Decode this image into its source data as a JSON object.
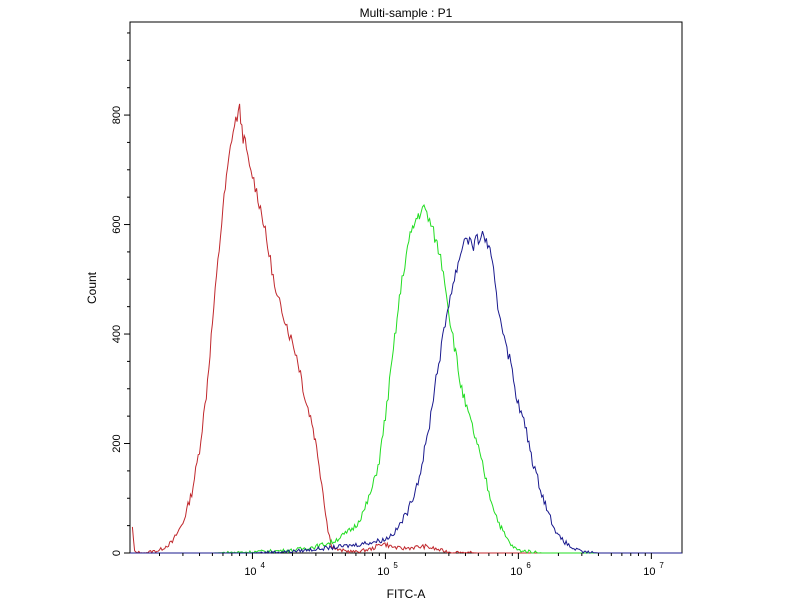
{
  "chart_data": {
    "type": "line",
    "title": "Multi-sample : P1",
    "xlabel": "FITC-A",
    "ylabel": "Count",
    "x_scale": "log",
    "xlim": [
      1200,
      17000000
    ],
    "ylim": [
      0,
      970
    ],
    "grid": false,
    "x_tick_labels": [
      {
        "base": "10",
        "exp": "4"
      },
      {
        "base": "10",
        "exp": "5"
      },
      {
        "base": "10",
        "exp": "6"
      },
      {
        "base": "10",
        "exp": "7"
      }
    ],
    "x_ticks": [
      10000,
      100000,
      1000000,
      10000000
    ],
    "y_ticks": [
      0,
      200,
      400,
      600,
      800
    ],
    "y_tick_labels": [
      "0",
      "200",
      "400",
      "600",
      "800"
    ],
    "series": [
      {
        "color": "#c0282d",
        "points": [
          [
            1250,
            45
          ],
          [
            1300,
            2
          ],
          [
            1500,
            0
          ],
          [
            2000,
            5
          ],
          [
            2500,
            20
          ],
          [
            3000,
            55
          ],
          [
            3500,
            110
          ],
          [
            4000,
            190
          ],
          [
            4500,
            290
          ],
          [
            5000,
            420
          ],
          [
            5500,
            530
          ],
          [
            6000,
            630
          ],
          [
            6500,
            700
          ],
          [
            7000,
            760
          ],
          [
            7500,
            790
          ],
          [
            8000,
            810
          ],
          [
            8500,
            760
          ],
          [
            9000,
            740
          ],
          [
            9500,
            700
          ],
          [
            10000,
            690
          ],
          [
            11000,
            650
          ],
          [
            12000,
            610
          ],
          [
            13000,
            560
          ],
          [
            14000,
            520
          ],
          [
            15000,
            470
          ],
          [
            17000,
            440
          ],
          [
            19000,
            400
          ],
          [
            21000,
            370
          ],
          [
            23000,
            330
          ],
          [
            25000,
            280
          ],
          [
            28000,
            240
          ],
          [
            31000,
            180
          ],
          [
            34000,
            110
          ],
          [
            37000,
            40
          ],
          [
            40000,
            10
          ],
          [
            45000,
            5
          ],
          [
            60000,
            2
          ],
          [
            80000,
            8
          ],
          [
            95000,
            18
          ],
          [
            110000,
            12
          ],
          [
            130000,
            8
          ],
          [
            160000,
            10
          ],
          [
            200000,
            12
          ],
          [
            250000,
            6
          ],
          [
            300000,
            2
          ],
          [
            500000,
            0
          ],
          [
            17000000,
            0
          ]
        ]
      },
      {
        "color": "#22dd22",
        "points": [
          [
            1200,
            0
          ],
          [
            5000,
            0
          ],
          [
            10000,
            2
          ],
          [
            20000,
            5
          ],
          [
            30000,
            12
          ],
          [
            40000,
            20
          ],
          [
            50000,
            35
          ],
          [
            60000,
            50
          ],
          [
            70000,
            80
          ],
          [
            80000,
            120
          ],
          [
            90000,
            170
          ],
          [
            100000,
            250
          ],
          [
            110000,
            330
          ],
          [
            120000,
            410
          ],
          [
            130000,
            480
          ],
          [
            140000,
            530
          ],
          [
            150000,
            570
          ],
          [
            160000,
            590
          ],
          [
            170000,
            610
          ],
          [
            180000,
            620
          ],
          [
            190000,
            630
          ],
          [
            200000,
            625
          ],
          [
            220000,
            600
          ],
          [
            240000,
            570
          ],
          [
            260000,
            540
          ],
          [
            280000,
            500
          ],
          [
            300000,
            440
          ],
          [
            330000,
            380
          ],
          [
            360000,
            320
          ],
          [
            400000,
            270
          ],
          [
            450000,
            230
          ],
          [
            500000,
            190
          ],
          [
            550000,
            150
          ],
          [
            600000,
            110
          ],
          [
            700000,
            60
          ],
          [
            800000,
            30
          ],
          [
            900000,
            12
          ],
          [
            1000000,
            5
          ],
          [
            1500000,
            0
          ],
          [
            17000000,
            0
          ]
        ]
      },
      {
        "color": "#1a1a8e",
        "points": [
          [
            1200,
            0
          ],
          [
            10000,
            0
          ],
          [
            20000,
            3
          ],
          [
            40000,
            10
          ],
          [
            60000,
            15
          ],
          [
            80000,
            20
          ],
          [
            100000,
            25
          ],
          [
            120000,
            40
          ],
          [
            150000,
            80
          ],
          [
            180000,
            140
          ],
          [
            210000,
            220
          ],
          [
            240000,
            320
          ],
          [
            270000,
            390
          ],
          [
            300000,
            460
          ],
          [
            330000,
            500
          ],
          [
            360000,
            540
          ],
          [
            400000,
            580
          ],
          [
            430000,
            570
          ],
          [
            460000,
            560
          ],
          [
            500000,
            575
          ],
          [
            550000,
            580
          ],
          [
            600000,
            560
          ],
          [
            650000,
            510
          ],
          [
            700000,
            450
          ],
          [
            800000,
            390
          ],
          [
            900000,
            330
          ],
          [
            1000000,
            270
          ],
          [
            1100000,
            240
          ],
          [
            1200000,
            200
          ],
          [
            1300000,
            160
          ],
          [
            1500000,
            110
          ],
          [
            1700000,
            70
          ],
          [
            2000000,
            30
          ],
          [
            2500000,
            10
          ],
          [
            3000000,
            2
          ],
          [
            4000000,
            0
          ],
          [
            17000000,
            0
          ]
        ]
      }
    ]
  }
}
